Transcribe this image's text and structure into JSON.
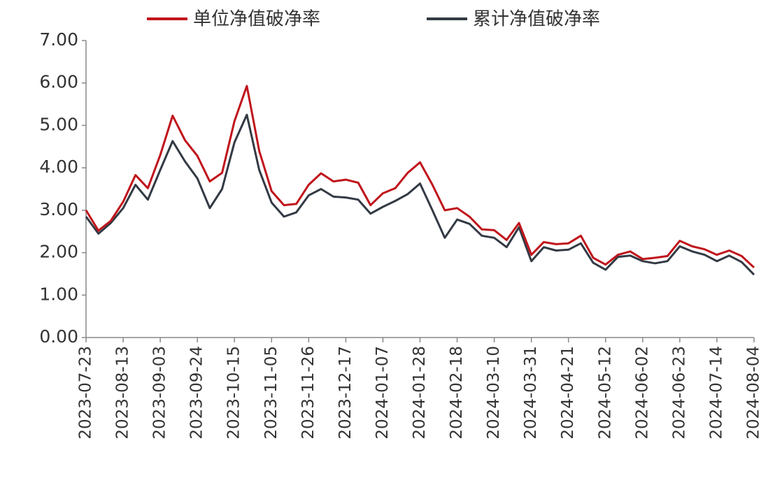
{
  "chart_data": {
    "type": "line",
    "categories": [
      "2023-07-23",
      null,
      null,
      "2023-08-13",
      null,
      null,
      "2023-09-03",
      null,
      null,
      "2023-09-24",
      null,
      null,
      "2023-10-15",
      null,
      null,
      "2023-11-05",
      null,
      null,
      "2023-11-26",
      null,
      null,
      "2023-12-17",
      null,
      null,
      "2024-01-07",
      null,
      null,
      "2024-01-28",
      null,
      null,
      "2024-02-18",
      null,
      null,
      "2024-03-10",
      null,
      null,
      "2024-03-31",
      null,
      null,
      "2024-04-21",
      null,
      null,
      "2024-05-12",
      null,
      null,
      "2024-06-02",
      null,
      null,
      "2024-06-23",
      null,
      null,
      "2024-07-14",
      null,
      null,
      "2024-08-04"
    ],
    "series": [
      {
        "name": "单位净值破净率",
        "color": "#c0141c",
        "values": [
          3.0,
          2.52,
          2.75,
          3.2,
          3.83,
          3.52,
          4.3,
          5.23,
          4.65,
          4.28,
          3.68,
          3.88,
          5.1,
          5.93,
          4.4,
          3.45,
          3.12,
          3.15,
          3.6,
          3.87,
          3.68,
          3.72,
          3.65,
          3.12,
          3.4,
          3.52,
          3.88,
          4.13,
          3.6,
          3.0,
          3.05,
          2.85,
          2.55,
          2.53,
          2.3,
          2.7,
          1.95,
          2.25,
          2.2,
          2.22,
          2.4,
          1.88,
          1.72,
          1.95,
          2.03,
          1.85,
          1.88,
          1.92,
          2.28,
          2.15,
          2.08,
          1.95,
          2.05,
          1.92,
          1.65
        ]
      },
      {
        "name": "累计净值破净率",
        "color": "#333a44",
        "values": [
          2.85,
          2.45,
          2.7,
          3.05,
          3.6,
          3.25,
          3.95,
          4.63,
          4.15,
          3.75,
          3.05,
          3.5,
          4.6,
          5.25,
          3.95,
          3.18,
          2.85,
          2.95,
          3.35,
          3.5,
          3.32,
          3.3,
          3.25,
          2.92,
          3.08,
          3.22,
          3.38,
          3.63,
          3.0,
          2.35,
          2.78,
          2.68,
          2.4,
          2.35,
          2.13,
          2.6,
          1.8,
          2.13,
          2.05,
          2.07,
          2.22,
          1.76,
          1.6,
          1.9,
          1.93,
          1.8,
          1.75,
          1.8,
          2.15,
          2.03,
          1.95,
          1.8,
          1.93,
          1.78,
          1.48
        ]
      }
    ],
    "ylim": [
      0,
      7
    ],
    "yticks": [
      {
        "value": 0,
        "label": "0.00"
      },
      {
        "value": 1,
        "label": "1.00"
      },
      {
        "value": 2,
        "label": "2.00"
      },
      {
        "value": 3,
        "label": "3.00"
      },
      {
        "value": 4,
        "label": "4.00"
      },
      {
        "value": 5,
        "label": "5.00"
      },
      {
        "value": 6,
        "label": "6.00"
      },
      {
        "value": 7,
        "label": "7.00"
      }
    ],
    "legend": "top"
  }
}
